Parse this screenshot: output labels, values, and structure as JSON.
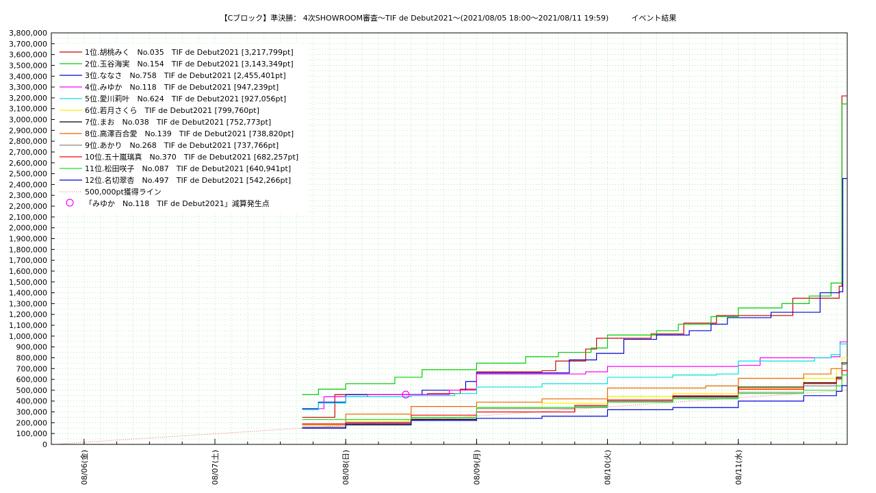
{
  "chart_data": {
    "type": "line",
    "title": "【Cブロック】準決勝： 4次SHOWROOM審査〜TIF de Debut2021〜(2021/08/05 18:00〜2021/08/11 19:59)　　　イベント結果",
    "xlabel": "",
    "ylabel": "",
    "grid": true,
    "legend_position": "top-left",
    "x_range": [
      "2021/08/05 18:00",
      "2021/08/11 19:59"
    ],
    "ylim": [
      0,
      3800000
    ],
    "y_ticks": [
      "0",
      "100,000",
      "200,000",
      "300,000",
      "400,000",
      "500,000",
      "600,000",
      "700,000",
      "800,000",
      "900,000",
      "1,000,000",
      "1,100,000",
      "1,200,000",
      "1,300,000",
      "1,400,000",
      "1,500,000",
      "1,600,000",
      "1,700,000",
      "1,800,000",
      "1,900,000",
      "2,000,000",
      "2,100,000",
      "2,200,000",
      "2,300,000",
      "2,400,000",
      "2,500,000",
      "2,600,000",
      "2,700,000",
      "2,800,000",
      "2,900,000",
      "3,000,000",
      "3,100,000",
      "3,200,000",
      "3,300,000",
      "3,400,000",
      "3,500,000",
      "3,600,000",
      "3,700,000",
      "3,800,000"
    ],
    "x_ticks": [
      {
        "t": "2021/08/06 00:00",
        "label": "08/06(金)"
      },
      {
        "t": "2021/08/07 00:00",
        "label": "08/07(土)"
      },
      {
        "t": "2021/08/08 00:00",
        "label": "08/08(日)"
      },
      {
        "t": "2021/08/09 00:00",
        "label": "08/09(月)"
      },
      {
        "t": "2021/08/10 00:00",
        "label": "08/10(火)"
      },
      {
        "t": "2021/08/11 00:00",
        "label": "08/11(水)"
      }
    ],
    "series": [
      {
        "name": "1位.胡桃みく　No.035　TIF de Debut2021 [3,217,799pt]",
        "color": "#cc0000",
        "points": [
          [
            "2021/08/07 16:00",
            250000
          ],
          [
            "2021/08/07 21:00",
            250000
          ],
          [
            "2021/08/07 22:00",
            460000
          ],
          [
            "2021/08/08 06:00",
            460000
          ],
          [
            "2021/08/08 15:00",
            470000
          ],
          [
            "2021/08/08 21:00",
            510000
          ],
          [
            "2021/08/09 00:00",
            670000
          ],
          [
            "2021/08/09 12:00",
            680000
          ],
          [
            "2021/08/09 14:30",
            770000
          ],
          [
            "2021/08/09 20:00",
            880000
          ],
          [
            "2021/08/09 22:00",
            980000
          ],
          [
            "2021/08/10 08:00",
            1020000
          ],
          [
            "2021/08/10 14:00",
            1120000
          ],
          [
            "2021/08/10 20:00",
            1190000
          ],
          [
            "2021/08/11 05:00",
            1190000
          ],
          [
            "2021/08/11 10:00",
            1350000
          ],
          [
            "2021/08/11 18:00",
            1350000
          ],
          [
            "2021/08/11 18:30",
            1460000
          ],
          [
            "2021/08/11 19:00",
            3217799
          ],
          [
            "2021/08/11 19:59",
            3217799
          ]
        ]
      },
      {
        "name": "2位.玉谷海実　No.154　TIF de Debut2021 [3,143,349pt]",
        "color": "#00cc00",
        "points": [
          [
            "2021/08/07 16:00",
            460000
          ],
          [
            "2021/08/07 19:00",
            510000
          ],
          [
            "2021/08/08 00:00",
            560000
          ],
          [
            "2021/08/08 09:00",
            620000
          ],
          [
            "2021/08/08 14:00",
            690000
          ],
          [
            "2021/08/09 00:00",
            750000
          ],
          [
            "2021/08/09 09:00",
            810000
          ],
          [
            "2021/08/09 15:00",
            850000
          ],
          [
            "2021/08/09 21:00",
            890000
          ],
          [
            "2021/08/10 00:00",
            1010000
          ],
          [
            "2021/08/10 09:00",
            1050000
          ],
          [
            "2021/08/10 13:00",
            1110000
          ],
          [
            "2021/08/10 19:00",
            1180000
          ],
          [
            "2021/08/11 00:00",
            1260000
          ],
          [
            "2021/08/11 08:00",
            1300000
          ],
          [
            "2021/08/11 13:00",
            1370000
          ],
          [
            "2021/08/11 17:00",
            1490000
          ],
          [
            "2021/08/11 18:30",
            1490000
          ],
          [
            "2021/08/11 19:00",
            3143349
          ],
          [
            "2021/08/11 19:59",
            3143349
          ]
        ]
      },
      {
        "name": "3位.ななさ　No.758　TIF de Debut2021 [2,455,401pt]",
        "color": "#0000cc",
        "points": [
          [
            "2021/08/07 16:00",
            330000
          ],
          [
            "2021/08/07 19:00",
            390000
          ],
          [
            "2021/08/08 00:00",
            460000
          ],
          [
            "2021/08/08 06:00",
            460000
          ],
          [
            "2021/08/08 14:00",
            500000
          ],
          [
            "2021/08/08 22:00",
            580000
          ],
          [
            "2021/08/09 00:00",
            660000
          ],
          [
            "2021/08/09 14:00",
            660000
          ],
          [
            "2021/08/09 17:00",
            780000
          ],
          [
            "2021/08/09 22:00",
            840000
          ],
          [
            "2021/08/10 03:00",
            970000
          ],
          [
            "2021/08/10 09:00",
            1010000
          ],
          [
            "2021/08/10 15:00",
            1050000
          ],
          [
            "2021/08/10 19:00",
            1110000
          ],
          [
            "2021/08/10 22:00",
            1170000
          ],
          [
            "2021/08/11 06:00",
            1220000
          ],
          [
            "2021/08/11 15:00",
            1400000
          ],
          [
            "2021/08/11 18:30",
            1410000
          ],
          [
            "2021/08/11 19:10",
            2455401
          ],
          [
            "2021/08/11 19:59",
            2455401
          ]
        ]
      },
      {
        "name": "4位.みゆか　No.118　TIF de Debut2021 [947,239pt]",
        "color": "#ff00ff",
        "points": [
          [
            "2021/08/07 16:00",
            320000
          ],
          [
            "2021/08/07 19:00",
            330000
          ],
          [
            "2021/08/07 20:00",
            440000
          ],
          [
            "2021/08/08 04:00",
            460000
          ],
          [
            "2021/08/08 10:00",
            460000
          ],
          [
            "2021/08/08 19:00",
            500000
          ],
          [
            "2021/08/09 00:00",
            650000
          ],
          [
            "2021/08/09 18:00",
            650000
          ],
          [
            "2021/08/09 20:00",
            670000
          ],
          [
            "2021/08/10 00:00",
            720000
          ],
          [
            "2021/08/11 00:00",
            730000
          ],
          [
            "2021/08/11 04:00",
            800000
          ],
          [
            "2021/08/11 17:00",
            810000
          ],
          [
            "2021/08/11 18:40",
            947239
          ],
          [
            "2021/08/11 19:59",
            947239
          ]
        ]
      },
      {
        "name": "5位.愛川莉叶　No.624　TIF de Debut2021 [927,056pt]",
        "color": "#00e0e0",
        "points": [
          [
            "2021/08/07 16:00",
            320000
          ],
          [
            "2021/08/07 19:00",
            380000
          ],
          [
            "2021/08/08 00:00",
            440000
          ],
          [
            "2021/08/08 12:00",
            450000
          ],
          [
            "2021/08/08 20:00",
            470000
          ],
          [
            "2021/08/09 00:00",
            530000
          ],
          [
            "2021/08/09 12:00",
            560000
          ],
          [
            "2021/08/10 00:00",
            620000
          ],
          [
            "2021/08/10 12:00",
            640000
          ],
          [
            "2021/08/10 20:00",
            650000
          ],
          [
            "2021/08/11 00:00",
            770000
          ],
          [
            "2021/08/11 14:00",
            800000
          ],
          [
            "2021/08/11 17:00",
            830000
          ],
          [
            "2021/08/11 18:40",
            927056
          ],
          [
            "2021/08/11 19:59",
            927056
          ]
        ]
      },
      {
        "name": "6位.若月さくら　TIF de Debut2021 [799,760pt]",
        "color": "#ffee00",
        "points": [
          [
            "2021/08/07 16:00",
            180000
          ],
          [
            "2021/08/08 00:00",
            210000
          ],
          [
            "2021/08/08 12:00",
            250000
          ],
          [
            "2021/08/09 00:00",
            340000
          ],
          [
            "2021/08/09 12:00",
            380000
          ],
          [
            "2021/08/10 00:00",
            440000
          ],
          [
            "2021/08/10 12:00",
            470000
          ],
          [
            "2021/08/11 00:00",
            520000
          ],
          [
            "2021/08/11 12:00",
            610000
          ],
          [
            "2021/08/11 18:00",
            700000
          ],
          [
            "2021/08/11 19:00",
            799760
          ],
          [
            "2021/08/11 19:59",
            799760
          ]
        ]
      },
      {
        "name": "7位.まお　No.038　TIF de Debut2021 [752,773pt]",
        "color": "#000000",
        "points": [
          [
            "2021/08/07 16:00",
            150000
          ],
          [
            "2021/08/08 00:00",
            180000
          ],
          [
            "2021/08/08 12:00",
            230000
          ],
          [
            "2021/08/09 00:00",
            300000
          ],
          [
            "2021/08/09 18:00",
            360000
          ],
          [
            "2021/08/10 00:00",
            400000
          ],
          [
            "2021/08/10 12:00",
            440000
          ],
          [
            "2021/08/11 00:00",
            530000
          ],
          [
            "2021/08/11 12:00",
            570000
          ],
          [
            "2021/08/11 18:00",
            620000
          ],
          [
            "2021/08/11 19:00",
            752773
          ],
          [
            "2021/08/11 19:59",
            752773
          ]
        ]
      },
      {
        "name": "8位.高澤百合愛　No.139　TIF de Debut2021 [738,820pt]",
        "color": "#ee6600",
        "points": [
          [
            "2021/08/07 16:00",
            180000
          ],
          [
            "2021/08/08 00:00",
            280000
          ],
          [
            "2021/08/08 12:00",
            350000
          ],
          [
            "2021/08/09 00:00",
            390000
          ],
          [
            "2021/08/09 12:00",
            420000
          ],
          [
            "2021/08/10 00:00",
            520000
          ],
          [
            "2021/08/10 18:00",
            540000
          ],
          [
            "2021/08/11 00:00",
            610000
          ],
          [
            "2021/08/11 12:00",
            650000
          ],
          [
            "2021/08/11 17:00",
            700000
          ],
          [
            "2021/08/11 19:00",
            738820
          ],
          [
            "2021/08/11 19:59",
            738820
          ]
        ]
      },
      {
        "name": "9位.あかり　No.268　TIF de Debut2021 [737,766pt]",
        "color": "#888888",
        "points": [
          [
            "2021/08/07 16:00",
            160000
          ],
          [
            "2021/08/08 00:00",
            200000
          ],
          [
            "2021/08/08 12:00",
            240000
          ],
          [
            "2021/08/09 00:00",
            330000
          ],
          [
            "2021/08/09 18:00",
            340000
          ],
          [
            "2021/08/10 00:00",
            400000
          ],
          [
            "2021/08/10 12:00",
            430000
          ],
          [
            "2021/08/11 00:00",
            480000
          ],
          [
            "2021/08/11 12:00",
            540000
          ],
          [
            "2021/08/11 18:00",
            600000
          ],
          [
            "2021/08/11 19:00",
            737766
          ],
          [
            "2021/08/11 19:59",
            737766
          ]
        ]
      },
      {
        "name": "10位.五十嵐璃真　No.370　TIF de Debut2021 [682,257pt]",
        "color": "#ff0000",
        "points": [
          [
            "2021/08/07 16:00",
            190000
          ],
          [
            "2021/08/08 00:00",
            200000
          ],
          [
            "2021/08/08 12:00",
            270000
          ],
          [
            "2021/08/09 00:00",
            300000
          ],
          [
            "2021/08/09 18:00",
            360000
          ],
          [
            "2021/08/10 00:00",
            410000
          ],
          [
            "2021/08/10 12:00",
            450000
          ],
          [
            "2021/08/11 00:00",
            510000
          ],
          [
            "2021/08/11 12:00",
            560000
          ],
          [
            "2021/08/11 18:00",
            610000
          ],
          [
            "2021/08/11 19:00",
            682257
          ],
          [
            "2021/08/11 19:59",
            682257
          ]
        ]
      },
      {
        "name": "11位.松田咲子　No.087　TIF de Debut2021 [640,941pt]",
        "color": "#22dd22",
        "points": [
          [
            "2021/08/07 16:00",
            230000
          ],
          [
            "2021/08/08 00:00",
            230000
          ],
          [
            "2021/08/08 12:00",
            250000
          ],
          [
            "2021/08/09 00:00",
            340000
          ],
          [
            "2021/08/09 18:00",
            350000
          ],
          [
            "2021/08/10 00:00",
            390000
          ],
          [
            "2021/08/10 12:00",
            420000
          ],
          [
            "2021/08/11 00:00",
            470000
          ],
          [
            "2021/08/11 12:00",
            500000
          ],
          [
            "2021/08/11 18:00",
            540000
          ],
          [
            "2021/08/11 19:00",
            640941
          ],
          [
            "2021/08/11 19:59",
            640941
          ]
        ]
      },
      {
        "name": "12位.名切翠杏　No.497　TIF de Debut2021 [542,266pt]",
        "color": "#0000dd",
        "points": [
          [
            "2021/08/07 16:00",
            150000
          ],
          [
            "2021/08/08 00:00",
            190000
          ],
          [
            "2021/08/08 12:00",
            220000
          ],
          [
            "2021/08/09 00:00",
            240000
          ],
          [
            "2021/08/09 12:00",
            260000
          ],
          [
            "2021/08/10 00:00",
            320000
          ],
          [
            "2021/08/10 12:00",
            340000
          ],
          [
            "2021/08/11 00:00",
            400000
          ],
          [
            "2021/08/11 12:00",
            450000
          ],
          [
            "2021/08/11 18:00",
            490000
          ],
          [
            "2021/08/11 19:00",
            542266
          ],
          [
            "2021/08/11 19:59",
            542266
          ]
        ]
      }
    ],
    "reference_line": {
      "name": "500,000pt獲得ライン",
      "color": "#ee6666",
      "points": [
        [
          "2021/08/05 18:00",
          0
        ],
        [
          "2021/08/07 16:00",
          150000
        ],
        [
          "2021/08/11 19:59",
          500000
        ]
      ]
    },
    "annotation": {
      "name": "「みゆか　No.118　TIF de Debut2021」減算発生点",
      "color": "#ff00ff",
      "t": "2021/08/08 11:00",
      "value": 460000
    }
  }
}
